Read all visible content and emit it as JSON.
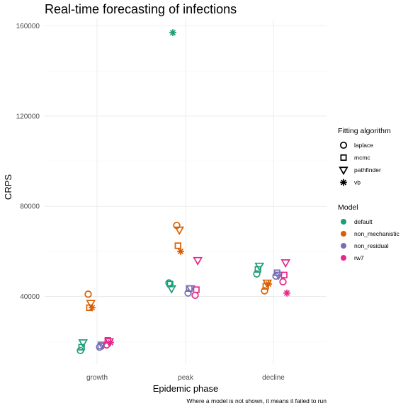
{
  "chart_data": {
    "type": "scatter",
    "title": "Real-time forecasting of infections",
    "xlabel": "Epidemic phase",
    "ylabel": "CRPS",
    "caption": "Where a model is not shown, it means it failed to run",
    "categories": [
      "growth",
      "peak",
      "decline"
    ],
    "ylim": [
      10000,
      163000
    ],
    "yticks": [
      40000,
      80000,
      120000,
      160000
    ],
    "grid": true,
    "legend_placement": "right",
    "shape_legend": {
      "title": "Fitting algorithm",
      "items": [
        {
          "label": "laplace",
          "shape": "circle"
        },
        {
          "label": "mcmc",
          "shape": "square"
        },
        {
          "label": "pathfinder",
          "shape": "triangle-down"
        },
        {
          "label": "vb",
          "shape": "asterisk"
        }
      ]
    },
    "color_legend": {
      "title": "Model",
      "items": [
        {
          "label": "default",
          "color": "#1b9e77"
        },
        {
          "label": "non_mechanistic",
          "color": "#d95f02"
        },
        {
          "label": "non_residual",
          "color": "#7570b3"
        },
        {
          "label": "rw7",
          "color": "#e7298a"
        }
      ]
    },
    "series": [
      {
        "model": "default",
        "algorithm": "laplace",
        "values": [
          16000,
          46000,
          50000
        ]
      },
      {
        "model": "default",
        "algorithm": "mcmc",
        "values": [
          17500,
          45500,
          52000
        ]
      },
      {
        "model": "default",
        "algorithm": "pathfinder",
        "values": [
          19500,
          43500,
          53500
        ]
      },
      {
        "model": "default",
        "algorithm": "vb",
        "values": [
          null,
          157000,
          null
        ]
      },
      {
        "model": "non_mechanistic",
        "algorithm": "laplace",
        "values": [
          41000,
          71500,
          42500
        ]
      },
      {
        "model": "non_mechanistic",
        "algorithm": "mcmc",
        "values": [
          35000,
          62500,
          44500
        ]
      },
      {
        "model": "non_mechanistic",
        "algorithm": "pathfinder",
        "values": [
          37000,
          69500,
          46000
        ]
      },
      {
        "model": "non_mechanistic",
        "algorithm": "vb",
        "values": [
          35000,
          60000,
          45500
        ]
      },
      {
        "model": "non_residual",
        "algorithm": "laplace",
        "values": [
          17500,
          41500,
          49000
        ]
      },
      {
        "model": "non_residual",
        "algorithm": "mcmc",
        "values": [
          18000,
          43500,
          50500
        ]
      },
      {
        "model": "non_residual",
        "algorithm": "pathfinder",
        "values": [
          18500,
          43500,
          49500
        ]
      },
      {
        "model": "rw7",
        "algorithm": "laplace",
        "values": [
          18500,
          40500,
          46500
        ]
      },
      {
        "model": "rw7",
        "algorithm": "mcmc",
        "values": [
          20500,
          43000,
          49500
        ]
      },
      {
        "model": "rw7",
        "algorithm": "pathfinder",
        "values": [
          20000,
          56000,
          55000
        ]
      },
      {
        "model": "rw7",
        "algorithm": "vb",
        "values": [
          19500,
          null,
          41500
        ]
      }
    ]
  }
}
